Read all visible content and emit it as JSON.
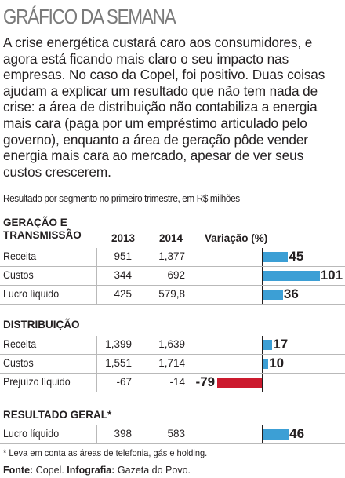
{
  "title": "GRÁFICO DA SEMANA",
  "intro": "A crise energética custará caro aos consumidores, e agora está ficando mais claro o seu impacto nas empresas. No caso da Copel, foi positivo. Duas coisas ajudam a explicar um resultado que não tem nada de crise: a área de distribuição não contabiliza a energia mais cara (paga por um empréstimo articulado pelo governo), enquanto a área de geração pôde vender energia mais cara ao mercado, apesar de ver seus custos crescerem.",
  "subtitle": "Resultado por segmento no primeiro trimestre, em R$ milhões",
  "columns": {
    "y2013": "2013",
    "y2014": "2014",
    "variation": "Variação (%)"
  },
  "colors": {
    "positive": "#3c9fd5",
    "negative": "#cc1a2e",
    "title": "#7a7a7a"
  },
  "chart_data": {
    "type": "bar",
    "orientation": "horizontal",
    "unit": "R$ milhões",
    "sections": [
      {
        "title": "GERAÇÃO E\nTRANSMISSÃO",
        "rows": [
          {
            "label": "Receita",
            "y2013": "951",
            "y2014": "1,377",
            "variation": 45
          },
          {
            "label": "Custos",
            "y2013": "344",
            "y2014": "692",
            "variation": 101
          },
          {
            "label": "Lucro líquido",
            "y2013": "425",
            "y2014": "579,8",
            "variation": 36
          }
        ]
      },
      {
        "title": "DISTRIBUIÇÃO",
        "rows": [
          {
            "label": "Receita",
            "y2013": "1,399",
            "y2014": "1,639",
            "variation": 17
          },
          {
            "label": "Custos",
            "y2013": "1,551",
            "y2014": "1,714",
            "variation": 10
          },
          {
            "label": "Prejuízo líquido",
            "y2013": "-67",
            "y2014": "-14",
            "variation": -79
          }
        ]
      },
      {
        "title": "RESULTADO GERAL*",
        "rows": [
          {
            "label": "Lucro líquido",
            "y2013": "398",
            "y2014": "583",
            "variation": 46
          }
        ]
      }
    ]
  },
  "footnote": "* Leva em conta as áreas de telefonia, gás e holding.",
  "source": {
    "label": "Fonte:",
    "value": "Copel.",
    "infographic_label": "Infografia:",
    "infographic_value": "Gazeta do Povo."
  }
}
